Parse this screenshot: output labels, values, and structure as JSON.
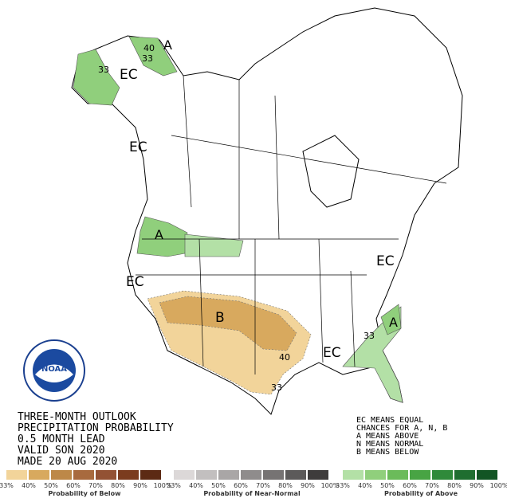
{
  "header": {
    "lines": [
      "THREE-MONTH OUTLOOK",
      "PRECIPITATION PROBABILITY",
      "0.5 MONTH LEAD",
      "VALID SON 2020",
      "MADE 20 AUG 2020"
    ]
  },
  "notes": [
    "EC MEANS EQUAL",
    "CHANCES FOR A, N, B",
    "A MEANS ABOVE",
    "N MEANS NORMAL",
    "B MEANS BELOW"
  ],
  "logo": {
    "text": "NOAA"
  },
  "map_labels": [
    "A",
    "40",
    "33",
    "33",
    "EC",
    "EC",
    "A",
    "EC",
    "B",
    "40",
    "33",
    "EC",
    "33",
    "A",
    "EC"
  ],
  "legends": [
    {
      "caption": "Probability of Below",
      "labels": [
        "33%",
        "40%",
        "50%",
        "60%",
        "70%",
        "80%",
        "90%",
        "100%"
      ],
      "colors": [
        "#f2d49a",
        "#d8a95e",
        "#bd8848",
        "#a86a3e",
        "#935234",
        "#7b3c1e",
        "#5c2a14"
      ]
    },
    {
      "caption": "Probability of Near-Normal",
      "labels": [
        "33%",
        "40%",
        "50%",
        "60%",
        "70%",
        "80%",
        "90%",
        "100%"
      ],
      "colors": [
        "#dcd8d8",
        "#c2bfbf",
        "#a9a6a6",
        "#8f8c8c",
        "#767373",
        "#5c5a5a",
        "#3e3c3c"
      ]
    },
    {
      "caption": "Probability of Above",
      "labels": [
        "33%",
        "40%",
        "50%",
        "60%",
        "70%",
        "80%",
        "90%",
        "100%"
      ],
      "colors": [
        "#b3e0a6",
        "#90cf7c",
        "#6bbb5a",
        "#48a444",
        "#2f8a3a",
        "#1f6e30",
        "#125524"
      ]
    }
  ]
}
